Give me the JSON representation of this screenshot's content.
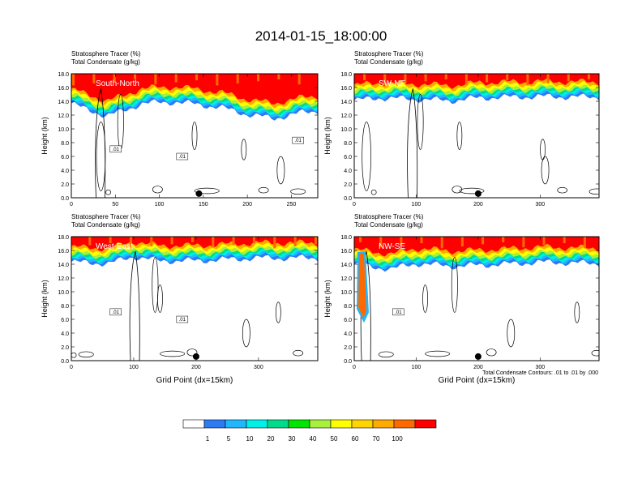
{
  "page_title": "2014-01-15_18:00:00",
  "footer_note": "Total Condensate Contours: .01 to .01 by .000",
  "colors": {
    "levels": [
      "#ffffff",
      "#2c7bf5",
      "#22b6ff",
      "#00f0e8",
      "#00dc8c",
      "#00e400",
      "#a8f03c",
      "#ffff00",
      "#ffd400",
      "#ffaa00",
      "#ff6a00",
      "#ff0000"
    ],
    "contour": "#000000",
    "marker": "#000000"
  },
  "chart_data": [
    {
      "type": "heatmap",
      "title_lines": [
        "Stratosphere Tracer   (%)",
        "Total Condensate   (g/kg)"
      ],
      "panel_label": "South-North",
      "ylabel": "Height (km)",
      "xlabel": "",
      "ylim": [
        0,
        18
      ],
      "xlim": [
        0,
        280
      ],
      "yticks": [
        "0.0",
        "2.0",
        "4.0",
        "6.0",
        "8.0",
        "10.0",
        "12.0",
        "14.0",
        "16.0",
        "18.0"
      ],
      "xticks": [
        0,
        50,
        100,
        150,
        200,
        250
      ],
      "contour_labels": [
        ".01",
        ".01",
        ".01"
      ],
      "marker_x": 145,
      "tropopause_height": [
        [
          0,
          14.6
        ],
        [
          15,
          13.8
        ],
        [
          40,
          12.8
        ],
        [
          60,
          13.5
        ],
        [
          80,
          14.6
        ],
        [
          120,
          14.8
        ],
        [
          140,
          14.5
        ],
        [
          170,
          14.0
        ],
        [
          200,
          13.0
        ],
        [
          230,
          12.4
        ],
        [
          260,
          13.2
        ],
        [
          280,
          13.5
        ]
      ]
    },
    {
      "type": "heatmap",
      "title_lines": [
        "Stratosphere Tracer   (%)",
        "Total Condensate   (g/kg)"
      ],
      "panel_label": "SW-NE",
      "ylabel": "Height (km)",
      "xlabel": "",
      "ylim": [
        0,
        18
      ],
      "xlim": [
        0,
        395
      ],
      "yticks": [
        "0.0",
        "2.0",
        "4.0",
        "6.0",
        "8.0",
        "10.0",
        "12.0",
        "14.0",
        "16.0",
        "18.0"
      ],
      "xticks": [
        0,
        100,
        200,
        300
      ],
      "contour_labels": [],
      "marker_x": 200,
      "tropopause_height": [
        [
          0,
          15.0
        ],
        [
          40,
          15.4
        ],
        [
          100,
          15.2
        ],
        [
          160,
          15.0
        ],
        [
          200,
          15.4
        ],
        [
          300,
          15.6
        ],
        [
          395,
          15.5
        ]
      ]
    },
    {
      "type": "heatmap",
      "title_lines": [
        "Stratosphere Tracer   (%)",
        "Total Condensate   (g/kg)"
      ],
      "panel_label": "West-East",
      "ylabel": "Height (km)",
      "xlabel": "Grid Point (dx=15km)",
      "ylim": [
        0,
        18
      ],
      "xlim": [
        0,
        395
      ],
      "yticks": [
        "0.0",
        "2.0",
        "4.0",
        "6.0",
        "8.0",
        "10.0",
        "12.0",
        "14.0",
        "16.0",
        "18.0"
      ],
      "xticks": [
        0,
        100,
        200,
        300
      ],
      "contour_labels": [
        ".01",
        ".01"
      ],
      "marker_x": 200,
      "tropopause_height": [
        [
          0,
          15.2
        ],
        [
          60,
          15.0
        ],
        [
          100,
          16.0
        ],
        [
          140,
          15.4
        ],
        [
          200,
          15.4
        ],
        [
          300,
          15.8
        ],
        [
          395,
          15.8
        ]
      ]
    },
    {
      "type": "heatmap",
      "title_lines": [
        "Stratosphere Tracer   (%)",
        "Total Condensate   (g/kg)"
      ],
      "panel_label": "NW-SE",
      "ylabel": "Height (km)",
      "xlabel": "Grid Point (dx=15km)",
      "ylim": [
        0,
        18
      ],
      "xlim": [
        0,
        395
      ],
      "yticks": [
        "0.0",
        "2.0",
        "4.0",
        "6.0",
        "8.0",
        "10.0",
        "12.0",
        "14.0",
        "16.0",
        "18.0"
      ],
      "xticks": [
        0,
        100,
        200,
        300
      ],
      "contour_labels": [
        ".01"
      ],
      "marker_x": 200,
      "tropopause_height": [
        [
          0,
          14.8
        ],
        [
          60,
          14.2
        ],
        [
          100,
          15.0
        ],
        [
          160,
          14.6
        ],
        [
          240,
          14.9
        ],
        [
          300,
          15.2
        ],
        [
          395,
          15.0
        ]
      ]
    }
  ],
  "colorbar": {
    "labels": [
      "1",
      "5",
      "10",
      "20",
      "30",
      "40",
      "50",
      "60",
      "70",
      "100"
    ]
  }
}
